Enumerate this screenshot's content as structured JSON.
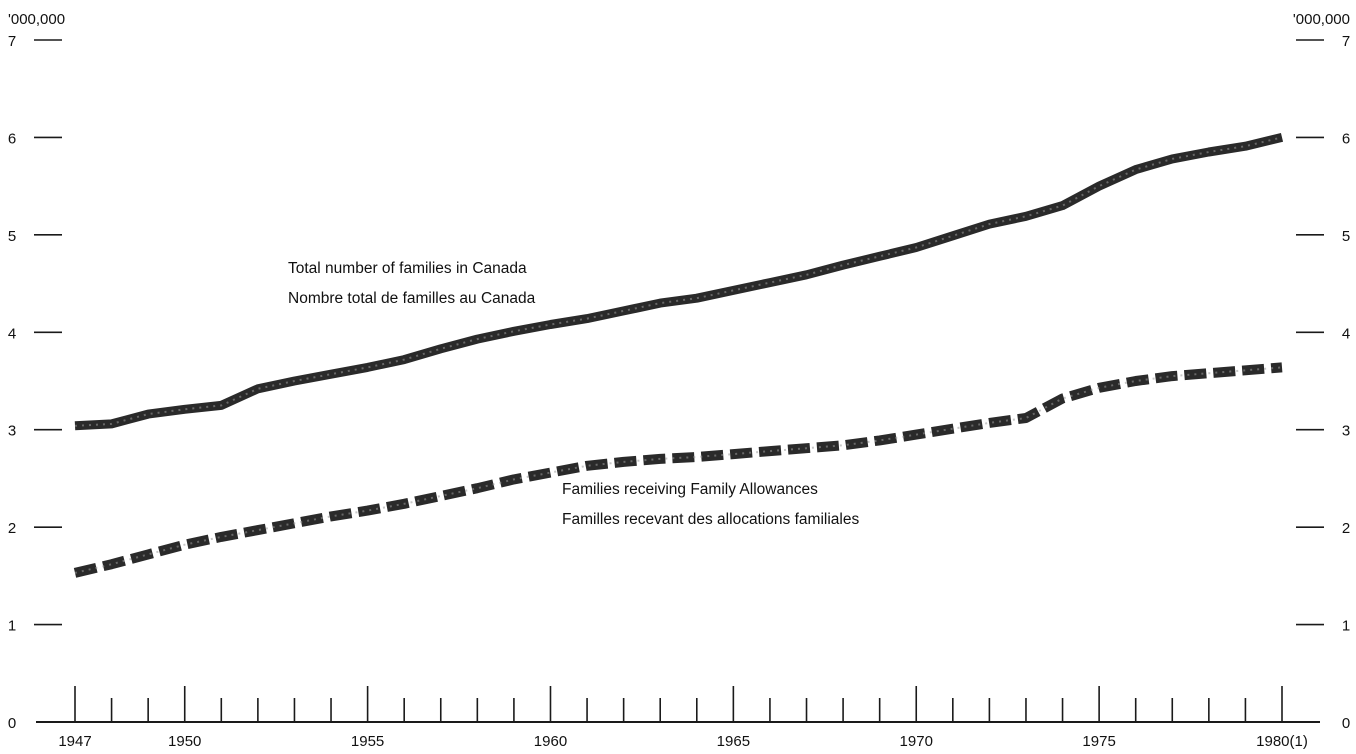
{
  "chart_data": {
    "type": "line",
    "title": "",
    "xlabel": "",
    "ylabel": "",
    "unit_left": "'000,000",
    "unit_right": "'000,000",
    "x": [
      1947,
      1948,
      1949,
      1950,
      1951,
      1952,
      1953,
      1954,
      1955,
      1956,
      1957,
      1958,
      1959,
      1960,
      1961,
      1962,
      1963,
      1964,
      1965,
      1966,
      1967,
      1968,
      1969,
      1970,
      1971,
      1972,
      1973,
      1974,
      1975,
      1976,
      1977,
      1978,
      1979,
      1980
    ],
    "xlim": [
      1947,
      1980
    ],
    "ylim": [
      0,
      7
    ],
    "x_tick_labels": [
      {
        "x": 1947,
        "label": "1947"
      },
      {
        "x": 1950,
        "label": "1950"
      },
      {
        "x": 1955,
        "label": "1955"
      },
      {
        "x": 1960,
        "label": "1960"
      },
      {
        "x": 1965,
        "label": "1965"
      },
      {
        "x": 1970,
        "label": "1970"
      },
      {
        "x": 1975,
        "label": "1975"
      },
      {
        "x": 1980,
        "label": "1980(1)"
      }
    ],
    "y_ticks": [
      0,
      1,
      2,
      3,
      4,
      5,
      6,
      7
    ],
    "y_tick_labels": [
      "0",
      "1",
      "2",
      "3",
      "4",
      "5",
      "6",
      "7"
    ],
    "grid": false,
    "series": [
      {
        "style": "solid",
        "color": "#2a2a2a",
        "values": [
          3.04,
          3.06,
          3.16,
          3.21,
          3.25,
          3.42,
          3.5,
          3.57,
          3.64,
          3.72,
          3.83,
          3.93,
          4.01,
          4.08,
          4.14,
          4.22,
          4.3,
          4.35,
          4.43,
          4.51,
          4.59,
          4.69,
          4.78,
          4.87,
          4.99,
          5.11,
          5.19,
          5.3,
          5.5,
          5.67,
          5.78,
          5.85,
          5.91,
          6.0
        ],
        "label_lines": [
          "Total number of families in Canada",
          "Nombre total de familles au Canada"
        ]
      },
      {
        "style": "dashed",
        "color": "#2a2a2a",
        "values": [
          1.53,
          1.62,
          1.72,
          1.82,
          1.9,
          1.97,
          2.04,
          2.11,
          2.17,
          2.24,
          2.32,
          2.4,
          2.49,
          2.56,
          2.63,
          2.67,
          2.7,
          2.72,
          2.75,
          2.78,
          2.81,
          2.84,
          2.89,
          2.95,
          3.01,
          3.07,
          3.12,
          3.32,
          3.43,
          3.5,
          3.55,
          3.58,
          3.61,
          3.64
        ],
        "label_lines": [
          "Families receiving Family Allowances",
          "Familles recevant des allocations familiales"
        ]
      }
    ]
  }
}
